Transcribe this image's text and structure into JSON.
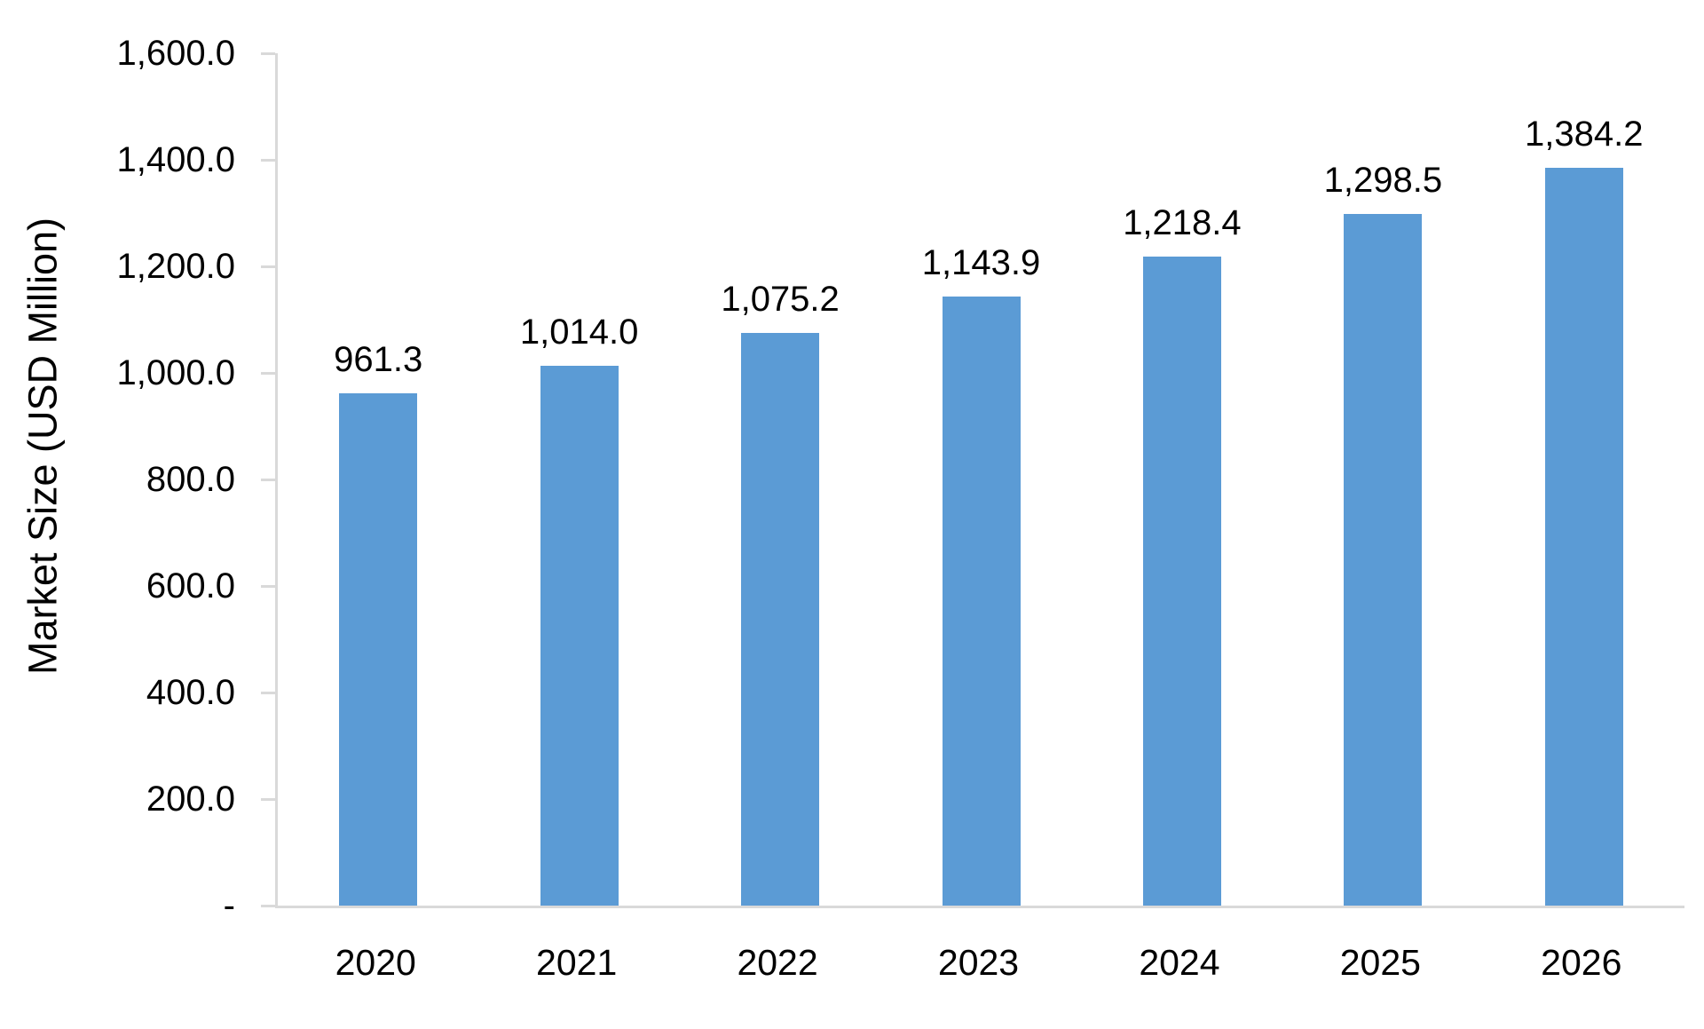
{
  "chart_data": {
    "type": "bar",
    "title": "",
    "xlabel": "",
    "ylabel": "Market Size (USD Million)",
    "categories": [
      "2020",
      "2021",
      "2022",
      "2023",
      "2024",
      "2025",
      "2026"
    ],
    "values": [
      961.3,
      1014.0,
      1075.2,
      1143.9,
      1218.4,
      1298.5,
      1384.2
    ],
    "value_labels": [
      "961.3",
      "1,014.0",
      "1,075.2",
      "1,143.9",
      "1,218.4",
      "1,298.5",
      "1,384.2"
    ],
    "ylim": [
      0,
      1600
    ],
    "ytick_interval": 200,
    "ytick_labels": [
      "1,600.0",
      "1,400.0",
      "1,200.0",
      "1,000.0",
      "800.0",
      "600.0",
      "400.0",
      "200.0",
      "-"
    ],
    "grid": false,
    "legend": false,
    "bar_color": "#5B9BD5",
    "axis_color": "#D9D9D9",
    "text_color": "#000000",
    "background_color": "#FFFFFF"
  }
}
